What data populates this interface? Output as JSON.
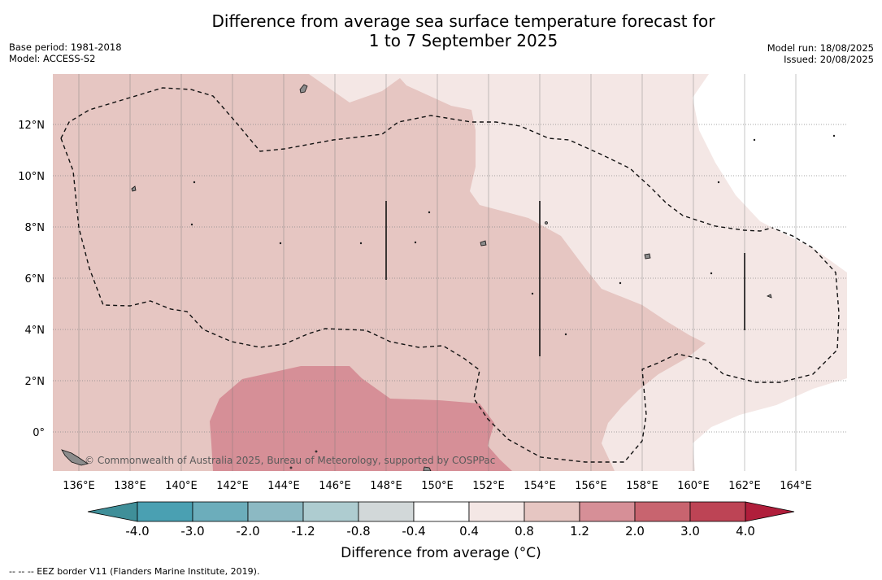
{
  "header": {
    "title_line1": "Difference from average sea surface temperature forecast for",
    "title_line2": "1 to 7 September 2025",
    "base_period": "Base period: 1981-2018",
    "model": "Model: ACCESS-S2",
    "model_run": "Model run: 18/08/2025",
    "issued": "Issued: 20/08/2025"
  },
  "map": {
    "lon_labels": [
      "136°E",
      "138°E",
      "140°E",
      "142°E",
      "144°E",
      "146°E",
      "148°E",
      "150°E",
      "152°E",
      "154°E",
      "156°E",
      "158°E",
      "160°E",
      "162°E",
      "164°E"
    ],
    "lat_labels": [
      "12°N",
      "10°N",
      "8°N",
      "6°N",
      "4°N",
      "2°N",
      "0°"
    ],
    "credit": "© Commonwealth of Australia 2025, Bureau of Meteorology, supported by COSPPac",
    "colors": {
      "anom_0_4_0_8": "#f4e7e5",
      "anom_0_8_1_2": "#e6c6c2",
      "anom_1_2_2_0": "#d68f97",
      "land": "#8c8c8c"
    }
  },
  "colorbar": {
    "tick_labels": [
      "-4.0",
      "-3.0",
      "-2.0",
      "-1.2",
      "-0.8",
      "-0.4",
      "0.4",
      "0.8",
      "1.2",
      "2.0",
      "3.0",
      "4.0"
    ],
    "colors": [
      "#3f8f99",
      "#4aa0b2",
      "#6cadbb",
      "#8cb9c3",
      "#aeccd0",
      "#d2d8d9",
      "#ffffff",
      "#f4e7e5",
      "#e6c6c2",
      "#d68f97",
      "#c8646f",
      "#bd4455",
      "#b01e3b"
    ],
    "label": "Difference from average (°C)"
  },
  "footer": {
    "eez_note": "-- -- -- EEZ border V11 (Flanders Marine Institute, 2019)."
  }
}
